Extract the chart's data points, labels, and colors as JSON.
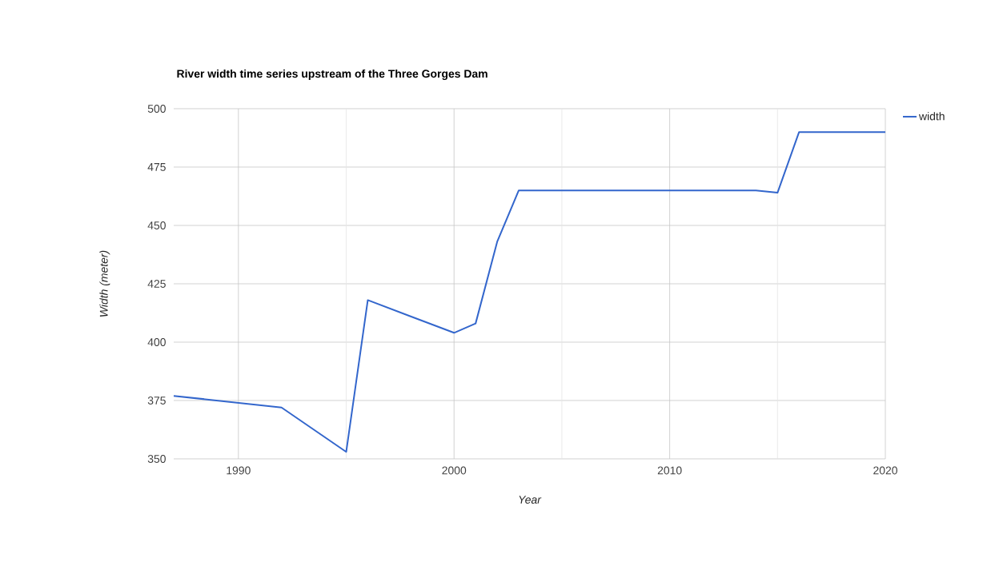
{
  "chart_data": {
    "type": "line",
    "title": "River width time series upstream of the Three Gorges Dam",
    "xlabel": "Year",
    "ylabel": "Width (meter)",
    "x": [
      1987,
      1992,
      1995,
      1996,
      2000,
      2001,
      2002,
      2003,
      2014,
      2015,
      2016,
      2020
    ],
    "series": [
      {
        "name": "width",
        "color": "#3366cc",
        "values": [
          377,
          372,
          353,
          418,
          404,
          408,
          443,
          465,
          465,
          464,
          490,
          490
        ]
      }
    ],
    "xlim": [
      1987,
      2020
    ],
    "ylim": [
      350,
      500
    ],
    "xticks": [
      1990,
      {
        "value": 1995,
        "label": null
      },
      2000,
      {
        "value": 2005,
        "label": null
      },
      2010,
      {
        "value": 2015,
        "label": null
      },
      2020
    ],
    "yticks": [
      350,
      375,
      400,
      425,
      450,
      475,
      500
    ],
    "grid": true,
    "legend": "top right",
    "marker": "none",
    "line_style": "solid"
  }
}
